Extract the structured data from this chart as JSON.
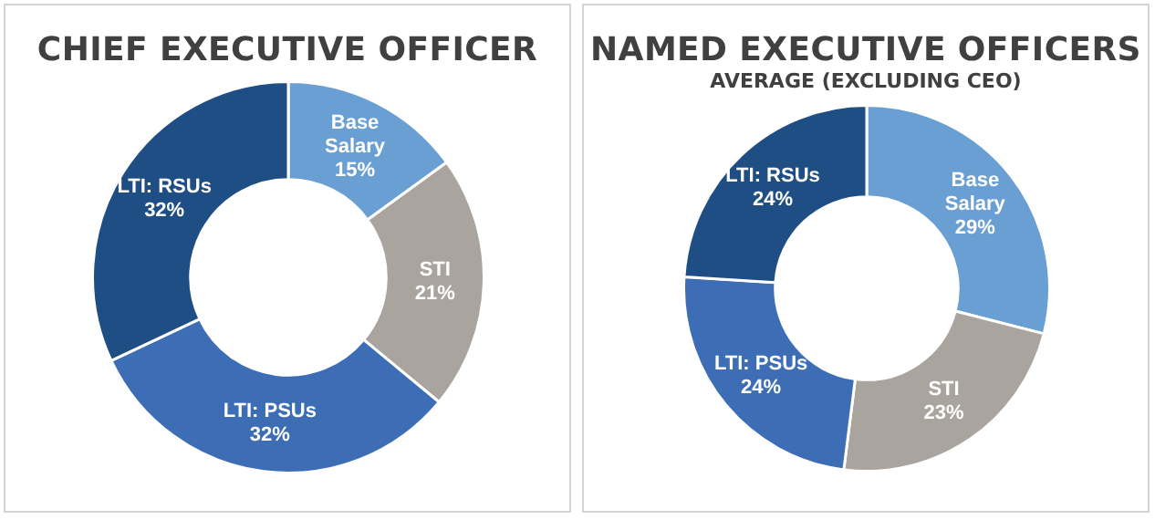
{
  "chart_data": [
    {
      "type": "donut",
      "title": "CHIEF EXECUTIVE OFFICER",
      "categories": [
        "Base Salary",
        "STI",
        "LTI: PSUs",
        "LTI: RSUs"
      ],
      "values": [
        15,
        21,
        32,
        32
      ],
      "value_labels": [
        "15%",
        "21%",
        "32%",
        "32%"
      ],
      "colors": [
        "#6a9fd4",
        "#a9a49e",
        "#3d6db5",
        "#1f4e85"
      ],
      "legend": false
    },
    {
      "type": "donut",
      "title": "NAMED EXECUTIVE OFFICERS",
      "subtitle": "AVERAGE (EXCLUDING CEO)",
      "categories": [
        "Base Salary",
        "STI",
        "LTI: PSUs",
        "LTI: RSUs"
      ],
      "values": [
        29,
        23,
        24,
        24
      ],
      "value_labels": [
        "29%",
        "23%",
        "24%",
        "24%"
      ],
      "colors": [
        "#6a9fd4",
        "#a9a49e",
        "#3d6db5",
        "#1f4e85"
      ],
      "legend": false
    }
  ]
}
